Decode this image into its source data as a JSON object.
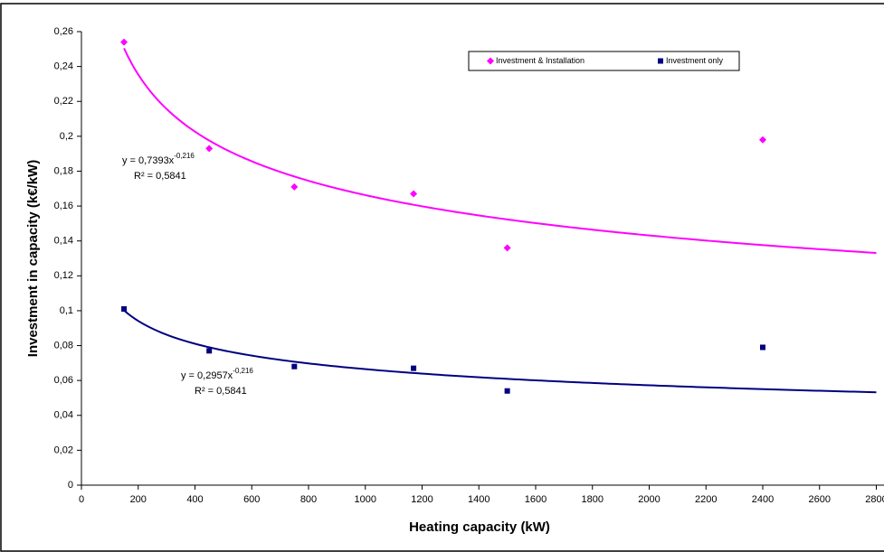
{
  "chart_data": {
    "type": "scatter",
    "xlabel": "Heating capacity (kW)",
    "ylabel": "Investment in capacity (k€/kW)",
    "x": [
      150,
      450,
      750,
      1170,
      1500,
      2400
    ],
    "series": [
      {
        "name": "Investment & Installation",
        "color": "#ff00ff",
        "marker": "diamond",
        "values": [
          0.254,
          0.193,
          0.171,
          0.167,
          0.136,
          0.198
        ],
        "trendline": {
          "coefficient": {
            "value": 0.7393,
            "label": "y = 0,7393x"
          },
          "exponent": {
            "value": -0.216,
            "label": "-0,216"
          },
          "r2": {
            "value": 0.5841,
            "label": "R² = 0,5841"
          }
        }
      },
      {
        "name": "Investment only",
        "color": "#000080",
        "marker": "square",
        "values": [
          0.101,
          0.077,
          0.068,
          0.067,
          0.054,
          0.079
        ],
        "trendline": {
          "coefficient": {
            "value": 0.2957,
            "label": "y = 0,2957x"
          },
          "exponent": {
            "value": -0.216,
            "label": "-0,216"
          },
          "r2": {
            "value": 0.5841,
            "label": "R² = 0,5841"
          }
        }
      }
    ],
    "xlim": [
      0,
      2800
    ],
    "xticks": [
      0,
      200,
      400,
      600,
      800,
      1000,
      1200,
      1400,
      1600,
      1800,
      2000,
      2200,
      2400,
      2600,
      2800
    ],
    "ylim": [
      0,
      0.26
    ],
    "yticks": [
      0,
      {
        "value": 0.02,
        "label": "0,02"
      },
      {
        "value": 0.04,
        "label": "0,04"
      },
      {
        "value": 0.06,
        "label": "0,06"
      },
      {
        "value": 0.08,
        "label": "0,08"
      },
      {
        "value": 0.1,
        "label": "0,1"
      },
      {
        "value": 0.12,
        "label": "0,12"
      },
      {
        "value": 0.14,
        "label": "0,14"
      },
      {
        "value": 0.16,
        "label": "0,16"
      },
      {
        "value": 0.18,
        "label": "0,18"
      },
      {
        "value": 0.2,
        "label": "0,2"
      },
      {
        "value": 0.22,
        "label": "0,22"
      },
      {
        "value": 0.24,
        "label": "0,24"
      },
      {
        "value": 0.26,
        "label": "0,26"
      }
    ],
    "legend": "top-right",
    "grid": false
  }
}
